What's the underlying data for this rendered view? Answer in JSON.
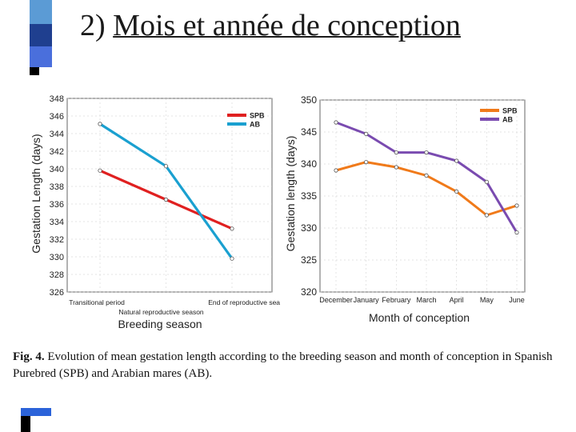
{
  "slide": {
    "title_prefix": "2) ",
    "title_main": "Mois et année de conception",
    "accent_colors": [
      "#5b9bd5",
      "#1f3f8f",
      "#4a6fdc",
      "#000000"
    ]
  },
  "caption": {
    "label": "Fig. 4.",
    "text": "Evolution of mean gestation length according to the breeding season and month of conception in Spanish Purebred (SPB) and Arabian mares (AB)."
  },
  "chart_data": [
    {
      "type": "line",
      "categories": [
        "Transitional period",
        "Natural reproductive season",
        "End of reproductive season"
      ],
      "series": [
        {
          "name": "SPB",
          "color": "#e02020",
          "values": [
            339.8,
            336.5,
            333.2
          ]
        },
        {
          "name": "AB",
          "color": "#1aa0d0",
          "values": [
            345.1,
            340.3,
            329.8
          ]
        }
      ],
      "xlabel": "Breeding season",
      "ylabel": "Gestation Length (days)",
      "ylim": [
        326,
        348
      ],
      "yticks": [
        326,
        328,
        330,
        332,
        334,
        336,
        338,
        340,
        342,
        344,
        346,
        348
      ],
      "legend": "top-right",
      "grid": true
    },
    {
      "type": "line",
      "categories": [
        "December",
        "January",
        "February",
        "March",
        "April",
        "May",
        "June"
      ],
      "series": [
        {
          "name": "SPB",
          "color": "#f07a1a",
          "values": [
            339,
            340.3,
            339.5,
            338.2,
            335.7,
            332,
            333.5
          ]
        },
        {
          "name": "AB",
          "color": "#7a4bb0",
          "values": [
            346.5,
            344.7,
            341.8,
            341.8,
            340.5,
            337.2,
            329.3
          ]
        }
      ],
      "xlabel": "Month of conception",
      "ylabel": "Gestation length (days)",
      "ylim": [
        320,
        350
      ],
      "yticks": [
        320,
        325,
        330,
        335,
        340,
        345,
        350
      ],
      "legend": "top-right",
      "grid": true
    }
  ]
}
